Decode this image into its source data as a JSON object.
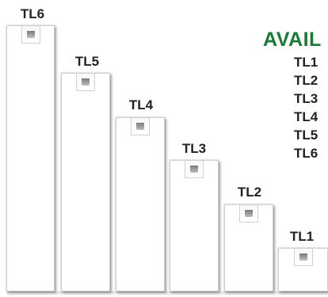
{
  "steps": [
    {
      "label": "TL6"
    },
    {
      "label": "TL5"
    },
    {
      "label": "TL4"
    },
    {
      "label": "TL3"
    },
    {
      "label": "TL2"
    },
    {
      "label": "TL1"
    }
  ],
  "legend": {
    "heading": "AVAIL",
    "items": [
      "TL1",
      "TL2",
      "TL3",
      "TL4",
      "TL5",
      "TL6"
    ]
  },
  "colors": {
    "heading": "#1b7a36",
    "label": "#222222",
    "surface": "#ffffff"
  }
}
